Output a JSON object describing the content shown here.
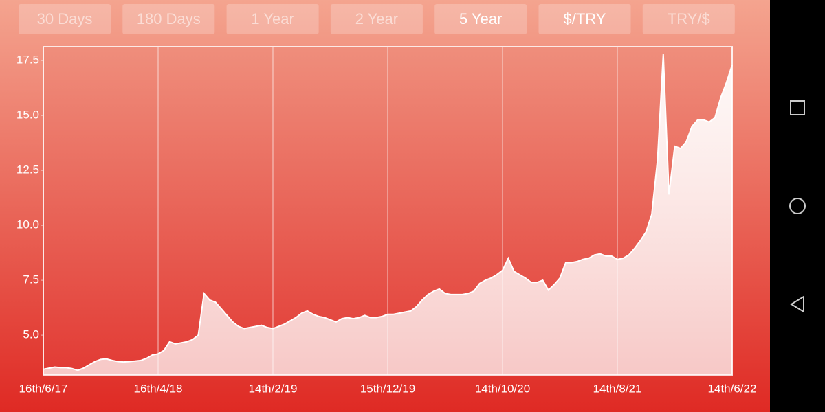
{
  "buttons": [
    {
      "label": "30 Days",
      "active": false
    },
    {
      "label": "180 Days",
      "active": false
    },
    {
      "label": "1 Year",
      "active": false
    },
    {
      "label": "2 Year",
      "active": false
    },
    {
      "label": "5 Year",
      "active": true
    },
    {
      "label": "$/TRY",
      "active": true
    },
    {
      "label": "TRY/$",
      "active": false
    }
  ],
  "chart_data": {
    "type": "area",
    "color": "#ffffff",
    "grid": true,
    "categories": [
      "16th/6/17",
      null,
      null,
      null,
      null,
      null,
      null,
      null,
      null,
      null,
      null,
      null,
      null,
      null,
      null,
      null,
      null,
      null,
      null,
      null,
      "16th/4/18",
      null,
      null,
      null,
      null,
      null,
      null,
      null,
      null,
      null,
      null,
      null,
      null,
      null,
      null,
      null,
      null,
      null,
      null,
      null,
      "14th/2/19",
      null,
      null,
      null,
      null,
      null,
      null,
      null,
      null,
      null,
      null,
      null,
      null,
      null,
      null,
      null,
      null,
      null,
      null,
      null,
      "15th/12/19",
      null,
      null,
      null,
      null,
      null,
      null,
      null,
      null,
      null,
      null,
      null,
      null,
      null,
      null,
      null,
      null,
      null,
      null,
      null,
      "14th/10/20",
      null,
      null,
      null,
      null,
      null,
      null,
      null,
      null,
      null,
      null,
      null,
      null,
      null,
      null,
      null,
      null,
      null,
      null,
      null,
      "14th/8/21",
      null,
      null,
      null,
      null,
      null,
      null,
      null,
      null,
      null,
      null,
      null,
      null,
      null,
      null,
      null,
      null,
      null,
      null,
      null,
      "14th/6/22"
    ],
    "values": [
      3.45,
      3.5,
      3.55,
      3.52,
      3.52,
      3.48,
      3.4,
      3.5,
      3.65,
      3.8,
      3.9,
      3.92,
      3.85,
      3.8,
      3.78,
      3.8,
      3.82,
      3.85,
      3.95,
      4.1,
      4.15,
      4.3,
      4.7,
      4.6,
      4.65,
      4.7,
      4.8,
      5.0,
      6.9,
      6.6,
      6.5,
      6.2,
      5.9,
      5.6,
      5.4,
      5.3,
      5.35,
      5.4,
      5.45,
      5.35,
      5.3,
      5.4,
      5.5,
      5.65,
      5.8,
      6.0,
      6.1,
      5.95,
      5.85,
      5.8,
      5.7,
      5.6,
      5.75,
      5.8,
      5.75,
      5.8,
      5.9,
      5.8,
      5.8,
      5.85,
      5.95,
      5.95,
      6.0,
      6.05,
      6.1,
      6.3,
      6.6,
      6.85,
      7.0,
      7.1,
      6.9,
      6.85,
      6.85,
      6.85,
      6.9,
      7.0,
      7.35,
      7.5,
      7.6,
      7.75,
      7.95,
      8.5,
      7.9,
      7.75,
      7.6,
      7.4,
      7.4,
      7.5,
      7.05,
      7.3,
      7.6,
      8.3,
      8.3,
      8.35,
      8.45,
      8.5,
      8.65,
      8.7,
      8.6,
      8.6,
      8.45,
      8.5,
      8.65,
      8.95,
      9.3,
      9.7,
      10.5,
      13.0,
      17.8,
      11.4,
      13.6,
      13.5,
      13.8,
      14.5,
      14.8,
      14.8,
      14.7,
      14.9,
      15.8,
      16.5,
      17.3
    ],
    "ylim": [
      3.19,
      18.13
    ],
    "yticks": [
      {
        "value": 5,
        "label": "5.0"
      },
      7.5,
      {
        "value": 10,
        "label": "10.0"
      },
      12.5,
      {
        "value": 15,
        "label": "15.0"
      },
      17.5
    ]
  }
}
